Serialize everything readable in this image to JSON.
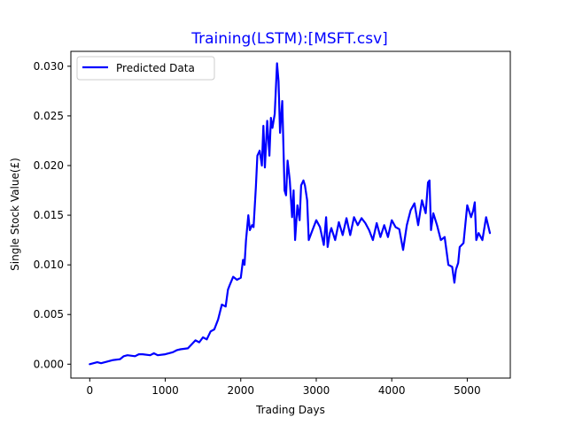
{
  "chart_data": {
    "type": "line",
    "title": "Training(LSTM):[MSFT.csv]",
    "title_color": "#0000ff",
    "xlabel": "Trading Days",
    "ylabel": "Single Stock Value(£)",
    "xlim": [
      -250,
      5570
    ],
    "ylim": [
      -0.0014,
      0.0315
    ],
    "x_ticks": [
      0,
      1000,
      2000,
      3000,
      4000,
      5000
    ],
    "x_tick_labels": [
      "0",
      "1000",
      "2000",
      "3000",
      "4000",
      "5000"
    ],
    "y_ticks": [
      0.0,
      0.005,
      0.01,
      0.015,
      0.02,
      0.025,
      0.03
    ],
    "y_tick_labels": [
      "0.000",
      "0.005",
      "0.010",
      "0.015",
      "0.020",
      "0.025",
      "0.030"
    ],
    "grid": false,
    "legend_placement": "top-left",
    "series": [
      {
        "name": "Predicted Data",
        "color": "#0000ff",
        "x": [
          0,
          100,
          150,
          200,
          300,
          400,
          450,
          500,
          600,
          650,
          700,
          800,
          850,
          900,
          1000,
          1100,
          1150,
          1200,
          1300,
          1350,
          1400,
          1450,
          1500,
          1550,
          1600,
          1650,
          1700,
          1750,
          1800,
          1830,
          1850,
          1900,
          1950,
          2000,
          2030,
          2050,
          2070,
          2100,
          2120,
          2150,
          2170,
          2200,
          2220,
          2250,
          2280,
          2300,
          2320,
          2350,
          2380,
          2400,
          2420,
          2450,
          2480,
          2500,
          2520,
          2550,
          2580,
          2600,
          2620,
          2650,
          2680,
          2700,
          2720,
          2750,
          2780,
          2800,
          2830,
          2850,
          2880,
          2900,
          2950,
          3000,
          3050,
          3100,
          3130,
          3150,
          3180,
          3200,
          3250,
          3300,
          3350,
          3400,
          3450,
          3500,
          3550,
          3600,
          3650,
          3700,
          3750,
          3800,
          3850,
          3900,
          3950,
          4000,
          4050,
          4100,
          4150,
          4200,
          4250,
          4300,
          4350,
          4400,
          4450,
          4480,
          4500,
          4520,
          4550,
          4600,
          4650,
          4700,
          4750,
          4800,
          4830,
          4850,
          4880,
          4900,
          4950,
          5000,
          5050,
          5080,
          5100,
          5120,
          5150,
          5200,
          5250,
          5300
        ],
        "y": [
          0.0,
          0.0002,
          0.0001,
          0.0002,
          0.0004,
          0.0005,
          0.0008,
          0.0009,
          0.0008,
          0.001,
          0.001,
          0.0009,
          0.0011,
          0.0009,
          0.001,
          0.0012,
          0.0014,
          0.0015,
          0.0016,
          0.002,
          0.0024,
          0.0022,
          0.0027,
          0.0025,
          0.0033,
          0.0035,
          0.0045,
          0.006,
          0.0058,
          0.0075,
          0.0079,
          0.0088,
          0.0085,
          0.0087,
          0.0105,
          0.01,
          0.0125,
          0.015,
          0.0135,
          0.014,
          0.0138,
          0.0178,
          0.021,
          0.0215,
          0.02,
          0.024,
          0.0198,
          0.0245,
          0.021,
          0.0248,
          0.0238,
          0.0252,
          0.0303,
          0.0285,
          0.0233,
          0.0265,
          0.0175,
          0.017,
          0.0205,
          0.0185,
          0.0148,
          0.0175,
          0.0125,
          0.016,
          0.0145,
          0.018,
          0.0185,
          0.018,
          0.0165,
          0.0125,
          0.0135,
          0.0145,
          0.0138,
          0.012,
          0.0148,
          0.0118,
          0.0132,
          0.0137,
          0.0125,
          0.0143,
          0.013,
          0.0147,
          0.013,
          0.0148,
          0.014,
          0.0147,
          0.0142,
          0.0135,
          0.0125,
          0.0142,
          0.0128,
          0.014,
          0.0128,
          0.0145,
          0.0138,
          0.0136,
          0.0115,
          0.014,
          0.0155,
          0.0162,
          0.014,
          0.0165,
          0.0152,
          0.0183,
          0.0185,
          0.0135,
          0.0152,
          0.014,
          0.0125,
          0.0128,
          0.01,
          0.0098,
          0.0082,
          0.0095,
          0.0102,
          0.0118,
          0.0122,
          0.016,
          0.0148,
          0.0155,
          0.0163,
          0.0125,
          0.0132,
          0.0125,
          0.0148,
          0.0132
        ]
      }
    ]
  }
}
